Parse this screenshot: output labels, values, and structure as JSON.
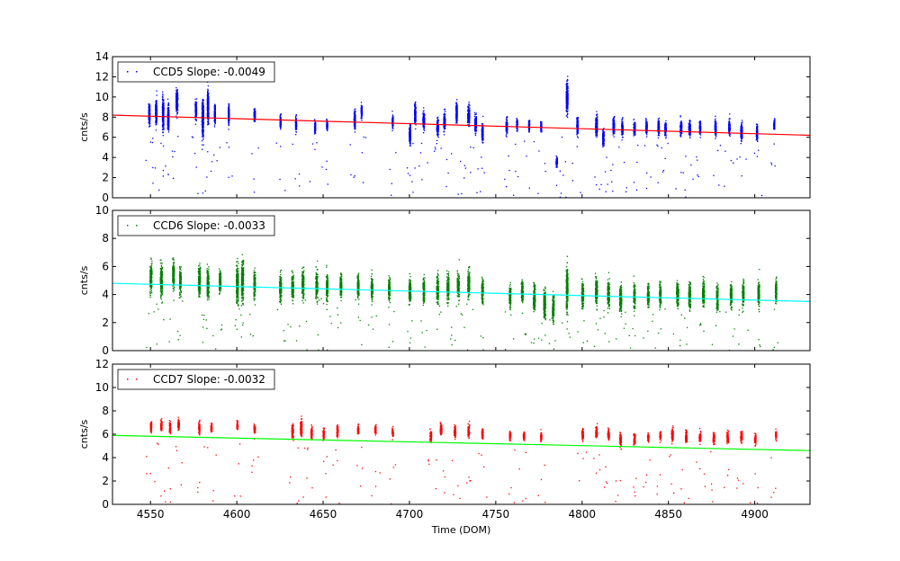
{
  "chart_data": [
    {
      "type": "scatter",
      "legend": {
        "label": "CCD5 Slope: -0.0049",
        "placement": "top-left"
      },
      "ylabel": "cnts/s",
      "xlim": [
        4528,
        4932
      ],
      "ylim": [
        0,
        14
      ],
      "yticks": [
        0,
        2,
        4,
        6,
        8,
        10,
        12,
        14
      ],
      "point_color": "#0000ff",
      "trend_color": "#ff0000",
      "slope": -0.0049,
      "trend": {
        "x": [
          4528,
          4932
        ],
        "y": [
          8.2,
          6.2
        ]
      },
      "clusters": [
        [
          4549,
          8.3,
          1.1,
          0.4
        ],
        [
          4553,
          8.6,
          1.2,
          0.4
        ],
        [
          4557,
          8.4,
          1.6,
          0.4
        ],
        [
          4560,
          8.0,
          1.3,
          0.4
        ],
        [
          4565,
          9.6,
          1.3,
          0.5
        ],
        [
          4576,
          8.8,
          1.0,
          0.4
        ],
        [
          4580,
          8.0,
          1.8,
          0.5
        ],
        [
          4583,
          9.2,
          1.6,
          0.4
        ],
        [
          4587,
          8.3,
          1.0,
          0.3
        ],
        [
          4595,
          8.2,
          1.0,
          0.3
        ],
        [
          4610,
          8.2,
          0.7,
          0.4
        ],
        [
          4625,
          7.6,
          0.7,
          0.3
        ],
        [
          4634,
          7.4,
          0.7,
          0.3
        ],
        [
          4645,
          7.0,
          0.7,
          0.3
        ],
        [
          4652,
          7.2,
          0.5,
          0.3
        ],
        [
          4668,
          7.8,
          0.9,
          0.4
        ],
        [
          4672,
          8.6,
          0.7,
          0.3
        ],
        [
          4690,
          7.6,
          0.7,
          0.3
        ],
        [
          4700,
          6.3,
          1.0,
          0.4
        ],
        [
          4703,
          8.4,
          1.1,
          0.4
        ],
        [
          4708,
          7.7,
          0.9,
          0.5
        ],
        [
          4716,
          7.0,
          0.9,
          0.5
        ],
        [
          4720,
          7.6,
          1.0,
          0.5
        ],
        [
          4727,
          8.5,
          1.0,
          0.4
        ],
        [
          4734,
          8.2,
          1.0,
          0.6
        ],
        [
          4738,
          7.4,
          0.9,
          0.5
        ],
        [
          4742,
          6.4,
          0.9,
          0.4
        ],
        [
          4756,
          7.1,
          0.8,
          0.4
        ],
        [
          4762,
          7.3,
          0.6,
          0.3
        ],
        [
          4769,
          7.2,
          0.6,
          0.3
        ],
        [
          4776,
          7.1,
          0.5,
          0.3
        ],
        [
          4785,
          3.6,
          0.5,
          0.4
        ],
        [
          4791,
          10.0,
          1.6,
          0.5
        ],
        [
          4797,
          7.2,
          0.9,
          0.4
        ],
        [
          4808,
          7.1,
          1.1,
          0.5
        ],
        [
          4812,
          6.0,
          0.9,
          0.4
        ],
        [
          4818,
          7.1,
          0.9,
          0.5
        ],
        [
          4823,
          7.0,
          0.8,
          0.4
        ],
        [
          4830,
          6.9,
          0.8,
          0.5
        ],
        [
          4837,
          7.0,
          0.7,
          0.4
        ],
        [
          4844,
          7.0,
          0.8,
          0.4
        ],
        [
          4848,
          6.9,
          0.7,
          0.4
        ],
        [
          4857,
          6.9,
          0.8,
          0.5
        ],
        [
          4862,
          6.9,
          0.8,
          0.5
        ],
        [
          4868,
          7.0,
          0.7,
          0.4
        ],
        [
          4877,
          7.0,
          0.8,
          0.4
        ],
        [
          4885,
          7.0,
          0.8,
          0.4
        ],
        [
          4892,
          6.6,
          0.9,
          0.5
        ],
        [
          4901,
          6.5,
          0.7,
          0.4
        ],
        [
          4911,
          7.3,
          0.6,
          0.3
        ]
      ]
    },
    {
      "type": "scatter",
      "legend": {
        "label": "CCD6 Slope: -0.0033",
        "placement": "top-left"
      },
      "ylabel": "cnts/s",
      "xlim": [
        4528,
        4932
      ],
      "ylim": [
        0,
        10
      ],
      "yticks": [
        0,
        2,
        4,
        6,
        8,
        10
      ],
      "point_color": "#008000",
      "trend_color": "#00ffff",
      "slope": -0.0033,
      "trend": {
        "x": [
          4528,
          4932
        ],
        "y": [
          4.8,
          3.5
        ]
      },
      "clusters": [
        [
          4550,
          5.2,
          1.0,
          0.6
        ],
        [
          4556,
          5.0,
          1.2,
          0.6
        ],
        [
          4563,
          5.5,
          1.0,
          0.5
        ],
        [
          4567,
          5.0,
          1.0,
          0.5
        ],
        [
          4578,
          5.0,
          1.1,
          0.6
        ],
        [
          4583,
          4.8,
          1.1,
          0.6
        ],
        [
          4590,
          5.0,
          0.9,
          0.5
        ],
        [
          4600,
          4.8,
          1.5,
          0.6
        ],
        [
          4603,
          5.0,
          1.5,
          0.6
        ],
        [
          4610,
          4.8,
          1.0,
          0.5
        ],
        [
          4625,
          4.5,
          1.0,
          0.6
        ],
        [
          4632,
          4.6,
          1.0,
          0.6
        ],
        [
          4638,
          4.8,
          1.0,
          0.6
        ],
        [
          4646,
          4.7,
          1.0,
          0.6
        ],
        [
          4652,
          4.5,
          1.0,
          0.5
        ],
        [
          4660,
          4.6,
          0.9,
          0.5
        ],
        [
          4670,
          4.6,
          0.9,
          0.5
        ],
        [
          4678,
          4.5,
          0.9,
          0.5
        ],
        [
          4688,
          4.4,
          0.9,
          0.5
        ],
        [
          4700,
          4.3,
          1.0,
          0.6
        ],
        [
          4708,
          4.3,
          0.9,
          0.5
        ],
        [
          4716,
          4.4,
          1.0,
          0.6
        ],
        [
          4722,
          4.5,
          1.0,
          0.6
        ],
        [
          4728,
          4.6,
          1.0,
          0.6
        ],
        [
          4734,
          4.8,
          1.0,
          0.6
        ],
        [
          4742,
          4.3,
          0.9,
          0.5
        ],
        [
          4758,
          4.0,
          0.9,
          0.5
        ],
        [
          4765,
          4.2,
          0.9,
          0.5
        ],
        [
          4772,
          3.8,
          1.0,
          0.6
        ],
        [
          4778,
          3.4,
          1.1,
          0.6
        ],
        [
          4783,
          3.0,
          1.0,
          0.5
        ],
        [
          4791,
          4.5,
          1.6,
          0.5
        ],
        [
          4800,
          4.0,
          1.0,
          0.6
        ],
        [
          4808,
          4.2,
          1.0,
          0.6
        ],
        [
          4815,
          4.0,
          1.0,
          0.6
        ],
        [
          4822,
          3.8,
          1.0,
          0.6
        ],
        [
          4830,
          3.9,
          0.9,
          0.5
        ],
        [
          4838,
          3.9,
          0.9,
          0.5
        ],
        [
          4845,
          4.0,
          0.9,
          0.5
        ],
        [
          4855,
          4.1,
          1.0,
          0.6
        ],
        [
          4862,
          4.0,
          1.0,
          0.6
        ],
        [
          4870,
          4.1,
          1.0,
          0.6
        ],
        [
          4878,
          3.8,
          0.9,
          0.5
        ],
        [
          4886,
          3.9,
          0.9,
          0.5
        ],
        [
          4893,
          4.0,
          0.9,
          0.5
        ],
        [
          4902,
          4.1,
          0.9,
          0.5
        ],
        [
          4912,
          4.3,
          0.8,
          0.4
        ]
      ]
    },
    {
      "type": "scatter",
      "legend": {
        "label": "CCD7 Slope: -0.0032",
        "placement": "top-left"
      },
      "ylabel": "cnts/s",
      "xlabel": "Time (DOM)",
      "xlim": [
        4528,
        4932
      ],
      "ylim": [
        0,
        12
      ],
      "yticks": [
        0,
        2,
        4,
        6,
        8,
        10,
        12
      ],
      "xticks": [
        4550,
        4600,
        4650,
        4700,
        4750,
        4800,
        4850,
        4900
      ],
      "point_color": "#ff0000",
      "trend_color": "#00ff00",
      "slope": -0.0032,
      "trend": {
        "x": [
          4528,
          4932
        ],
        "y": [
          5.9,
          4.6
        ]
      },
      "clusters": [
        [
          4550,
          6.7,
          0.5,
          0.4
        ],
        [
          4556,
          6.8,
          0.5,
          0.4
        ],
        [
          4561,
          6.6,
          0.5,
          0.4
        ],
        [
          4566,
          6.9,
          0.5,
          0.4
        ],
        [
          4578,
          6.6,
          0.5,
          0.4
        ],
        [
          4585,
          6.6,
          0.4,
          0.4
        ],
        [
          4600,
          6.8,
          0.4,
          0.4
        ],
        [
          4610,
          6.5,
          0.4,
          0.4
        ],
        [
          4632,
          6.3,
          0.6,
          0.5
        ],
        [
          4637,
          6.5,
          0.8,
          0.5
        ],
        [
          4643,
          6.2,
          0.5,
          0.4
        ],
        [
          4650,
          6.1,
          0.5,
          0.4
        ],
        [
          4658,
          6.3,
          0.5,
          0.4
        ],
        [
          4670,
          6.4,
          0.4,
          0.4
        ],
        [
          4680,
          6.4,
          0.4,
          0.4
        ],
        [
          4690,
          6.2,
          0.4,
          0.4
        ],
        [
          4712,
          5.8,
          0.6,
          0.5
        ],
        [
          4718,
          6.4,
          0.5,
          0.5
        ],
        [
          4726,
          6.3,
          0.5,
          0.5
        ],
        [
          4734,
          6.3,
          0.5,
          0.5
        ],
        [
          4742,
          6.1,
          0.4,
          0.4
        ],
        [
          4758,
          5.9,
          0.4,
          0.4
        ],
        [
          4766,
          5.9,
          0.4,
          0.4
        ],
        [
          4776,
          5.8,
          0.4,
          0.4
        ],
        [
          4800,
          6.0,
          0.5,
          0.5
        ],
        [
          4808,
          6.2,
          0.5,
          0.5
        ],
        [
          4815,
          6.0,
          0.5,
          0.5
        ],
        [
          4822,
          5.6,
          0.6,
          0.5
        ],
        [
          4830,
          5.7,
          0.5,
          0.5
        ],
        [
          4838,
          5.8,
          0.4,
          0.4
        ],
        [
          4845,
          5.9,
          0.4,
          0.4
        ],
        [
          4852,
          6.0,
          0.6,
          0.5
        ],
        [
          4860,
          5.8,
          0.5,
          0.5
        ],
        [
          4868,
          5.8,
          0.5,
          0.5
        ],
        [
          4876,
          5.7,
          0.5,
          0.5
        ],
        [
          4884,
          5.8,
          0.5,
          0.5
        ],
        [
          4892,
          5.8,
          0.5,
          0.5
        ],
        [
          4900,
          5.6,
          0.5,
          0.4
        ],
        [
          4912,
          6.0,
          0.4,
          0.3
        ]
      ]
    }
  ]
}
